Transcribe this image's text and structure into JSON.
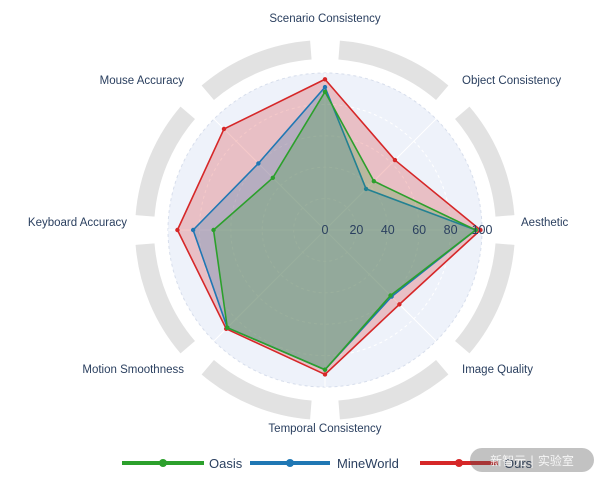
{
  "chart_data": {
    "type": "radar",
    "axes": [
      "Scenario Consistency",
      "Object Consistency",
      "Aesthetic",
      "Image Quality",
      "Temporal Consistency",
      "Motion Smoothness",
      "Keyboard Accuracy",
      "Mouse Accuracy"
    ],
    "radial_range": [
      0,
      100
    ],
    "radial_ticks": [
      "0",
      "20",
      "40",
      "60",
      "80",
      "100"
    ],
    "series": [
      {
        "name": "Oasis",
        "color": "#2ca02c",
        "values": [
          88,
          44,
          96,
          59,
          89,
          88,
          71,
          47
        ]
      },
      {
        "name": "MineWorld",
        "color": "#1f77b4",
        "values": [
          91,
          37,
          96,
          60,
          89,
          88,
          84,
          60
        ]
      },
      {
        "name": "Ours",
        "color": "#d62728",
        "values": [
          96,
          63,
          99,
          67,
          92,
          89,
          94,
          91
        ]
      }
    ],
    "legend": "bottom",
    "watermark": "新智元 | 实验室"
  }
}
